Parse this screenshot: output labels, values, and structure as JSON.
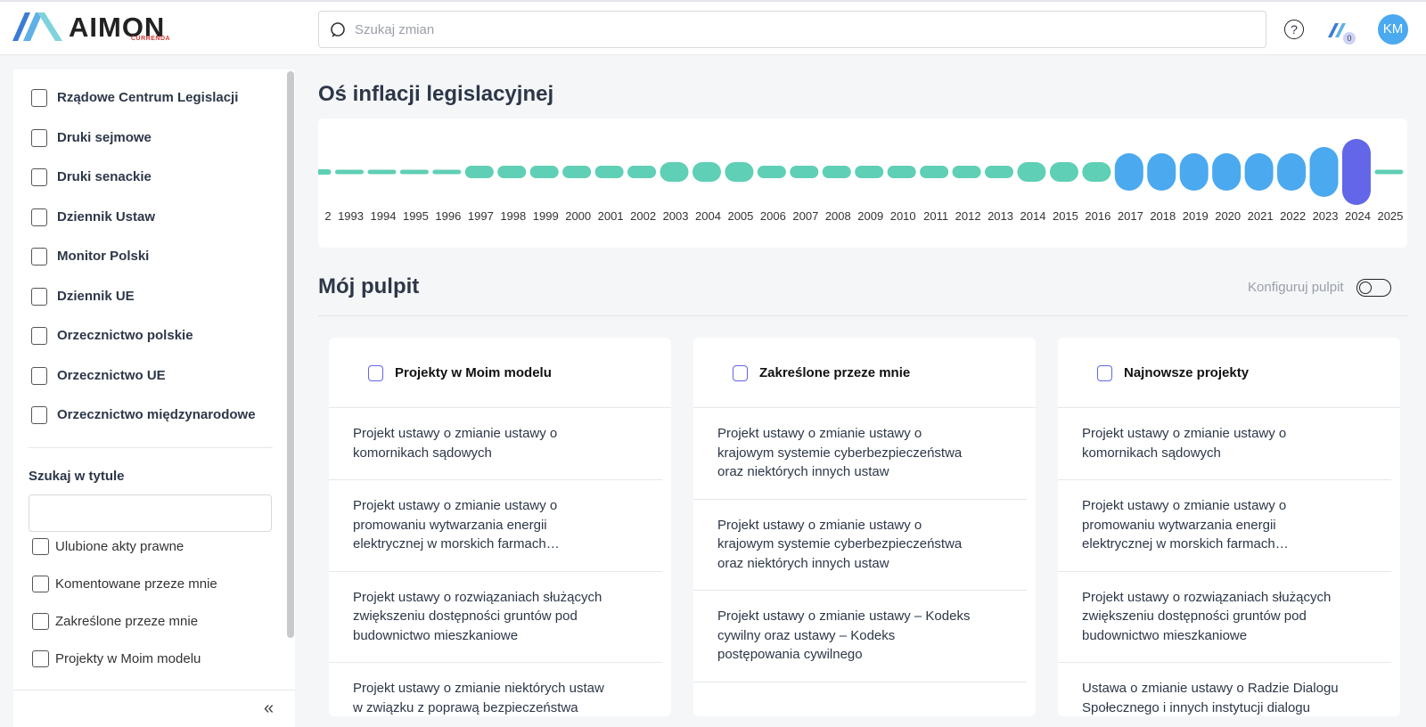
{
  "header": {
    "logo": "AIMON",
    "logo_sub": "CURRENDA",
    "search_placeholder": "Szukaj zmian",
    "help": "?",
    "badge": "0",
    "avatar": "KM"
  },
  "sidebar": {
    "menu": [
      "Rządowe Centrum Legislacji",
      "Druki sejmowe",
      "Druki senackie",
      "Dziennik Ustaw",
      "Monitor Polski",
      "Dziennik UE",
      "Orzecznictwo polskie",
      "Orzecznictwo UE",
      "Orzecznictwo międzynarodowe"
    ],
    "search_label": "Szukaj w tytule",
    "filters": [
      "Ulubione akty prawne",
      "Komentowane przeze mnie",
      "Zakreślone przeze mnie",
      "Projekty w Moim modelu"
    ],
    "collapse": "«"
  },
  "chart_data": {
    "type": "bar",
    "title": "Oś inflacji legislacyjnej",
    "categories": [
      "2",
      "1993",
      "1994",
      "1995",
      "1996",
      "1997",
      "1998",
      "1999",
      "2000",
      "2001",
      "2002",
      "2003",
      "2004",
      "2005",
      "2006",
      "2007",
      "2008",
      "2009",
      "2010",
      "2011",
      "2012",
      "2013",
      "2014",
      "2015",
      "2016",
      "2017",
      "2018",
      "2019",
      "2020",
      "2021",
      "2022",
      "2023",
      "2024",
      "2025"
    ],
    "values": [
      6,
      5,
      5,
      5,
      5,
      14,
      14,
      14,
      14,
      14,
      14,
      22,
      22,
      22,
      14,
      14,
      14,
      14,
      14,
      14,
      14,
      14,
      22,
      22,
      22,
      42,
      42,
      42,
      42,
      42,
      42,
      56,
      74,
      5
    ],
    "colors": [
      "#5fcfb5",
      "#5fcfb5",
      "#5fcfb5",
      "#5fcfb5",
      "#5fcfb5",
      "#5fcfb5",
      "#5fcfb5",
      "#5fcfb5",
      "#5fcfb5",
      "#5fcfb5",
      "#5fcfb5",
      "#5fcfb5",
      "#5fcfb5",
      "#5fcfb5",
      "#5fcfb5",
      "#5fcfb5",
      "#5fcfb5",
      "#5fcfb5",
      "#5fcfb5",
      "#5fcfb5",
      "#5fcfb5",
      "#5fcfb5",
      "#5fcfb5",
      "#5fcfb5",
      "#5fcfb5",
      "#4aa9ef",
      "#4aa9ef",
      "#4aa9ef",
      "#4aa9ef",
      "#4aa9ef",
      "#4aa9ef",
      "#4aa9ef",
      "#6366e8",
      "#5fcfb5"
    ]
  },
  "dashboard": {
    "title": "Mój pulpit",
    "configure": "Konfiguruj pulpit",
    "cards": [
      {
        "title": "Projekty w Moim modelu",
        "items": [
          "Projekt ustawy o zmianie ustawy o komornikach sądowych",
          "Projekt ustawy o zmianie ustawy o promowaniu wytwarzania energii elektrycznej w morskich farmach…",
          "Projekt ustawy o rozwiązaniach służących zwiększeniu dostępności gruntów pod budownictwo mieszkaniowe",
          "Projekt ustawy o zmianie niektórych ustaw w związku z poprawą bezpieczeństwa ruchu drogowego"
        ]
      },
      {
        "title": "Zakreślone przeze mnie",
        "items": [
          "Projekt ustawy o zmianie ustawy o krajowym systemie cyberbezpieczeństwa oraz niektórych innych ustaw",
          "Projekt ustawy o zmianie ustawy o krajowym systemie cyberbezpieczeństwa oraz niektórych innych ustaw",
          "Projekt ustawy o zmianie ustawy – Kodeks cywilny oraz ustawy – Kodeks postępowania cywilnego"
        ]
      },
      {
        "title": "Najnowsze projekty",
        "items": [
          "Projekt ustawy o zmianie ustawy o komornikach sądowych",
          "Projekt ustawy o zmianie ustawy o promowaniu wytwarzania energii elektrycznej w morskich farmach…",
          "Projekt ustawy o rozwiązaniach służących zwiększeniu dostępności gruntów pod budownictwo mieszkaniowe",
          "Ustawa o zmianie ustawy o Radzie Dialogu Społecznego i innych instytucji dialogu społecznego"
        ]
      }
    ]
  }
}
